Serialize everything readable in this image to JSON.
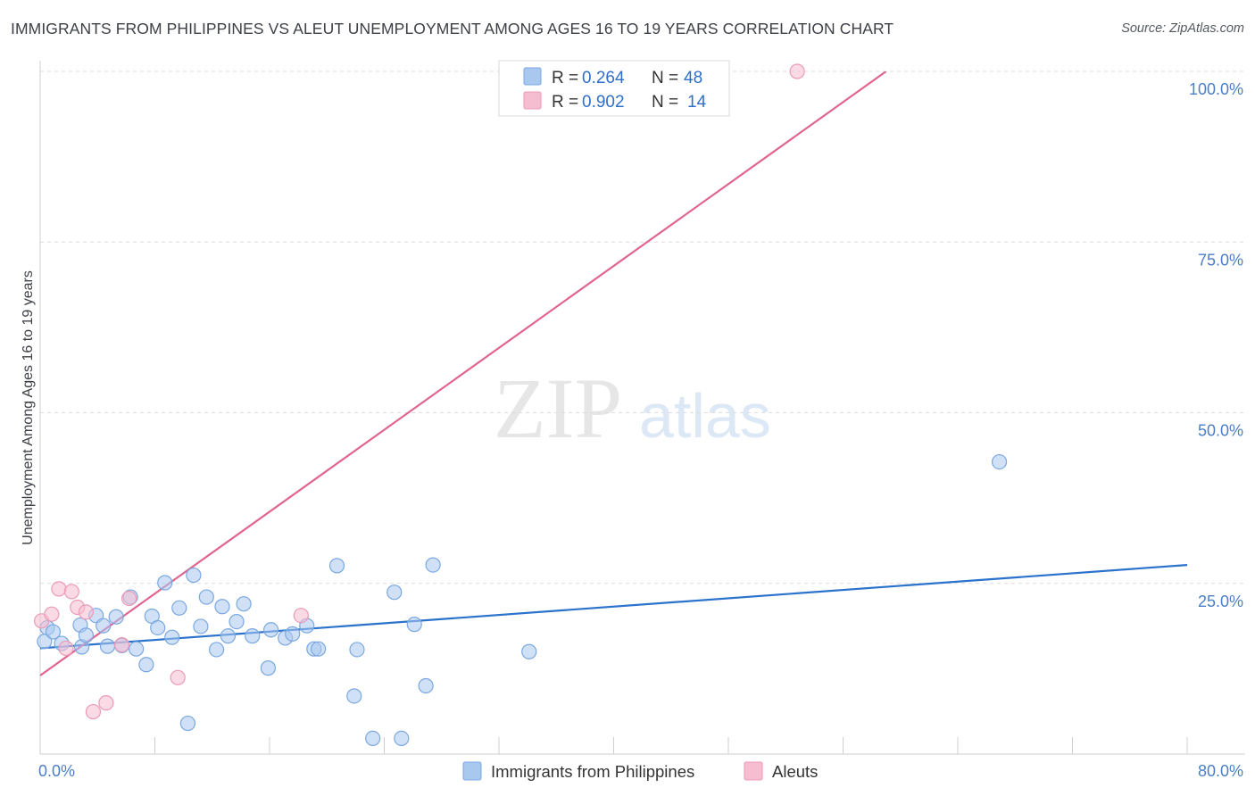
{
  "title": "IMMIGRANTS FROM PHILIPPINES VS ALEUT UNEMPLOYMENT AMONG AGES 16 TO 19 YEARS CORRELATION CHART",
  "source": "Source: ZipAtlas.com",
  "watermark": {
    "zip": "ZIP",
    "atlas": "atlas"
  },
  "colors": {
    "blue_fill": "#a9c8f0",
    "blue_stroke": "#7aa8e0",
    "blue_line": "#2a72cc",
    "pink_fill": "#f6bdd0",
    "pink_stroke": "#eb9ab6",
    "pink_line": "#e0658f",
    "grid": "#dcdcdc",
    "tick_text": "#4a7fc7"
  },
  "chart_data": {
    "type": "scatter",
    "ylabel": "Unemployment Among Ages 16 to 19 years",
    "xlim": [
      0,
      80
    ],
    "ylim": [
      0,
      100
    ],
    "x_tick_labels": [
      {
        "value": 0,
        "label": "0.0%"
      },
      {
        "value": 80,
        "label": "80.0%"
      }
    ],
    "x_minor_ticks": [
      0,
      8,
      16,
      24,
      32,
      40,
      48,
      56,
      64,
      72,
      80
    ],
    "y_tick_labels": [
      {
        "value": 25,
        "label": "25.0%"
      },
      {
        "value": 50,
        "label": "50.0%"
      },
      {
        "value": 75,
        "label": "75.0%"
      },
      {
        "value": 100,
        "label": "100.0%"
      }
    ],
    "legend_top": [
      {
        "series": "blue",
        "r_label": "R =",
        "r_value": "0.264",
        "n_label": "N =",
        "n_value": "48"
      },
      {
        "series": "pink",
        "r_label": "R =",
        "r_value": "0.902",
        "n_label": "N =",
        "n_value": "14"
      }
    ],
    "series": [
      {
        "name": "Immigrants from Philippines",
        "key": "blue",
        "trend": {
          "x0": 0,
          "y0": 15.5,
          "x1": 80,
          "y1": 27.7
        },
        "points": [
          [
            0.3,
            16.5
          ],
          [
            0.5,
            18.5
          ],
          [
            0.9,
            17.9
          ],
          [
            1.5,
            16.2
          ],
          [
            2.8,
            18.9
          ],
          [
            2.9,
            15.7
          ],
          [
            3.2,
            17.4
          ],
          [
            3.9,
            20.3
          ],
          [
            4.4,
            18.8
          ],
          [
            4.7,
            15.8
          ],
          [
            5.3,
            20.1
          ],
          [
            5.7,
            15.9
          ],
          [
            6.3,
            23.0
          ],
          [
            6.7,
            15.4
          ],
          [
            7.4,
            13.1
          ],
          [
            7.8,
            20.2
          ],
          [
            8.2,
            18.5
          ],
          [
            8.7,
            25.1
          ],
          [
            9.2,
            17.1
          ],
          [
            9.7,
            21.4
          ],
          [
            10.3,
            4.5
          ],
          [
            10.7,
            26.2
          ],
          [
            11.2,
            18.7
          ],
          [
            11.6,
            23.0
          ],
          [
            12.3,
            15.3
          ],
          [
            12.7,
            21.6
          ],
          [
            13.1,
            17.3
          ],
          [
            13.7,
            19.4
          ],
          [
            14.2,
            22.0
          ],
          [
            14.8,
            17.3
          ],
          [
            15.9,
            12.6
          ],
          [
            16.1,
            18.2
          ],
          [
            17.1,
            17.0
          ],
          [
            17.6,
            17.6
          ],
          [
            18.6,
            18.8
          ],
          [
            19.1,
            15.4
          ],
          [
            19.4,
            15.4
          ],
          [
            20.7,
            27.6
          ],
          [
            21.9,
            8.5
          ],
          [
            22.1,
            15.3
          ],
          [
            23.2,
            2.3
          ],
          [
            24.7,
            23.7
          ],
          [
            25.2,
            2.3
          ],
          [
            26.1,
            19.0
          ],
          [
            26.9,
            10.0
          ],
          [
            27.4,
            27.7
          ],
          [
            34.1,
            15.0
          ],
          [
            66.9,
            42.8
          ]
        ]
      },
      {
        "name": "Aleuts",
        "key": "pink",
        "trend": {
          "x0": 0,
          "y0": 11.5,
          "x1": 59,
          "y1": 100
        },
        "points": [
          [
            0.1,
            19.5
          ],
          [
            0.8,
            20.5
          ],
          [
            1.3,
            24.2
          ],
          [
            1.8,
            15.5
          ],
          [
            2.2,
            23.8
          ],
          [
            2.6,
            21.5
          ],
          [
            3.2,
            20.8
          ],
          [
            3.7,
            6.2
          ],
          [
            4.6,
            7.5
          ],
          [
            5.7,
            16.0
          ],
          [
            6.2,
            22.8
          ],
          [
            9.6,
            11.2
          ],
          [
            18.2,
            20.3
          ],
          [
            52.8,
            100.0
          ]
        ]
      }
    ]
  }
}
